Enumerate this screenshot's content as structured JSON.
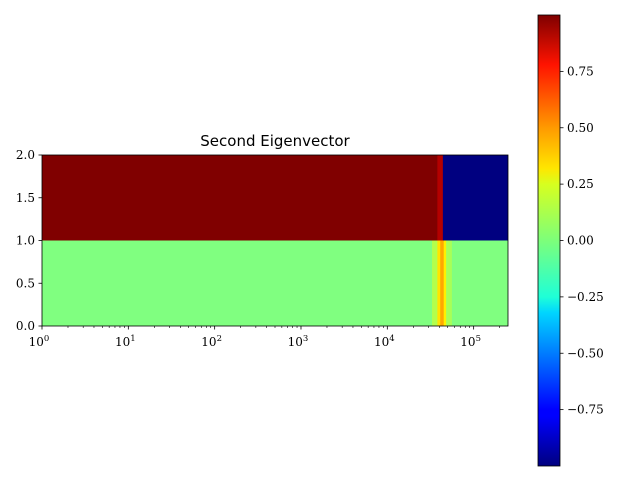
{
  "chart_data": {
    "type": "heatmap",
    "title": "Second Eigenvector",
    "xscale": "log",
    "xlim": [
      1,
      250000
    ],
    "ylim": [
      0,
      2
    ],
    "x_ticks": [
      {
        "value": 1,
        "base": "10",
        "exp": "0"
      },
      {
        "value": 10,
        "base": "10",
        "exp": "1"
      },
      {
        "value": 100,
        "base": "10",
        "exp": "2"
      },
      {
        "value": 1000,
        "base": "10",
        "exp": "3"
      },
      {
        "value": 10000,
        "base": "10",
        "exp": "4"
      },
      {
        "value": 100000,
        "base": "10",
        "exp": "5"
      }
    ],
    "y_ticks": [
      "0.0",
      "0.5",
      "1.0",
      "1.5",
      "2.0"
    ],
    "rows": [
      {
        "y_range": [
          1,
          2
        ],
        "segments": [
          {
            "x_from": 1,
            "x_to": 38000,
            "value": 1.0
          },
          {
            "x_from": 38000,
            "x_to": 44000,
            "value": 0.9
          },
          {
            "x_from": 44000,
            "x_to": 250000,
            "value": -1.0
          }
        ]
      },
      {
        "y_range": [
          0,
          1
        ],
        "segments": [
          {
            "x_from": 1,
            "x_to": 33000,
            "value": 0.0
          },
          {
            "x_from": 33000,
            "x_to": 38000,
            "value": 0.1
          },
          {
            "x_from": 38000,
            "x_to": 41000,
            "value": 0.3
          },
          {
            "x_from": 41000,
            "x_to": 45000,
            "value": 0.42
          },
          {
            "x_from": 45000,
            "x_to": 48000,
            "value": 0.28
          },
          {
            "x_from": 48000,
            "x_to": 56000,
            "value": 0.08
          },
          {
            "x_from": 56000,
            "x_to": 250000,
            "value": 0.0
          }
        ]
      }
    ],
    "colorbar": {
      "colormap": "jet",
      "range": [
        -1.0,
        1.0
      ],
      "tick_values": [
        0.75,
        0.5,
        0.25,
        0.0,
        -0.25,
        -0.5,
        -0.75
      ],
      "tick_labels": [
        "0.75",
        "0.50",
        "0.25",
        "0.00",
        "−0.25",
        "−0.50",
        "−0.75"
      ]
    }
  }
}
